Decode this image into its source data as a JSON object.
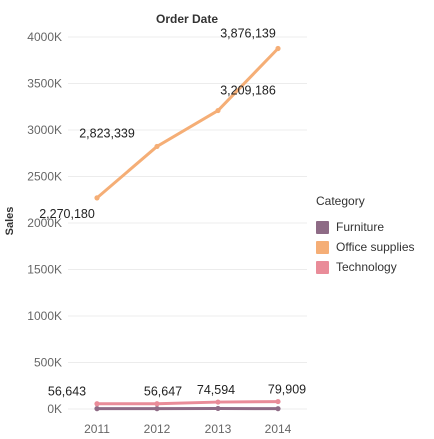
{
  "chart_data": {
    "type": "line",
    "title": "Order Date",
    "xlabel": "",
    "ylabel": "Sales",
    "categories": [
      "2011",
      "2012",
      "2013",
      "2014"
    ],
    "ylim": [
      0,
      4000000
    ],
    "yticks": [
      0,
      500000,
      1000000,
      1500000,
      2000000,
      2500000,
      3000000,
      3500000,
      4000000
    ],
    "ytick_labels": [
      "0K",
      "500K",
      "1000K",
      "1500K",
      "2000K",
      "2500K",
      "3000K",
      "3500K",
      "4000K"
    ],
    "grid": "horizontal",
    "legend_position": "right",
    "legend_title": "Category",
    "series": [
      {
        "name": "Furniture",
        "color": "#8e6b86",
        "values": [
          3850,
          4050,
          6000,
          3600
        ],
        "labels": [
          "",
          "",
          "",
          ""
        ]
      },
      {
        "name": "Office supplies",
        "color": "#f5ae76",
        "values": [
          2270180,
          2823339,
          3209186,
          3876139
        ],
        "labels": [
          "2,270,180",
          "2,823,339",
          "3,209,186",
          "3,876,139"
        ]
      },
      {
        "name": "Technology",
        "color": "#e98c99",
        "values": [
          56643,
          56647,
          74594,
          79909
        ],
        "labels": [
          "56,643",
          "56,647",
          "74,594",
          "79,909"
        ]
      }
    ]
  }
}
